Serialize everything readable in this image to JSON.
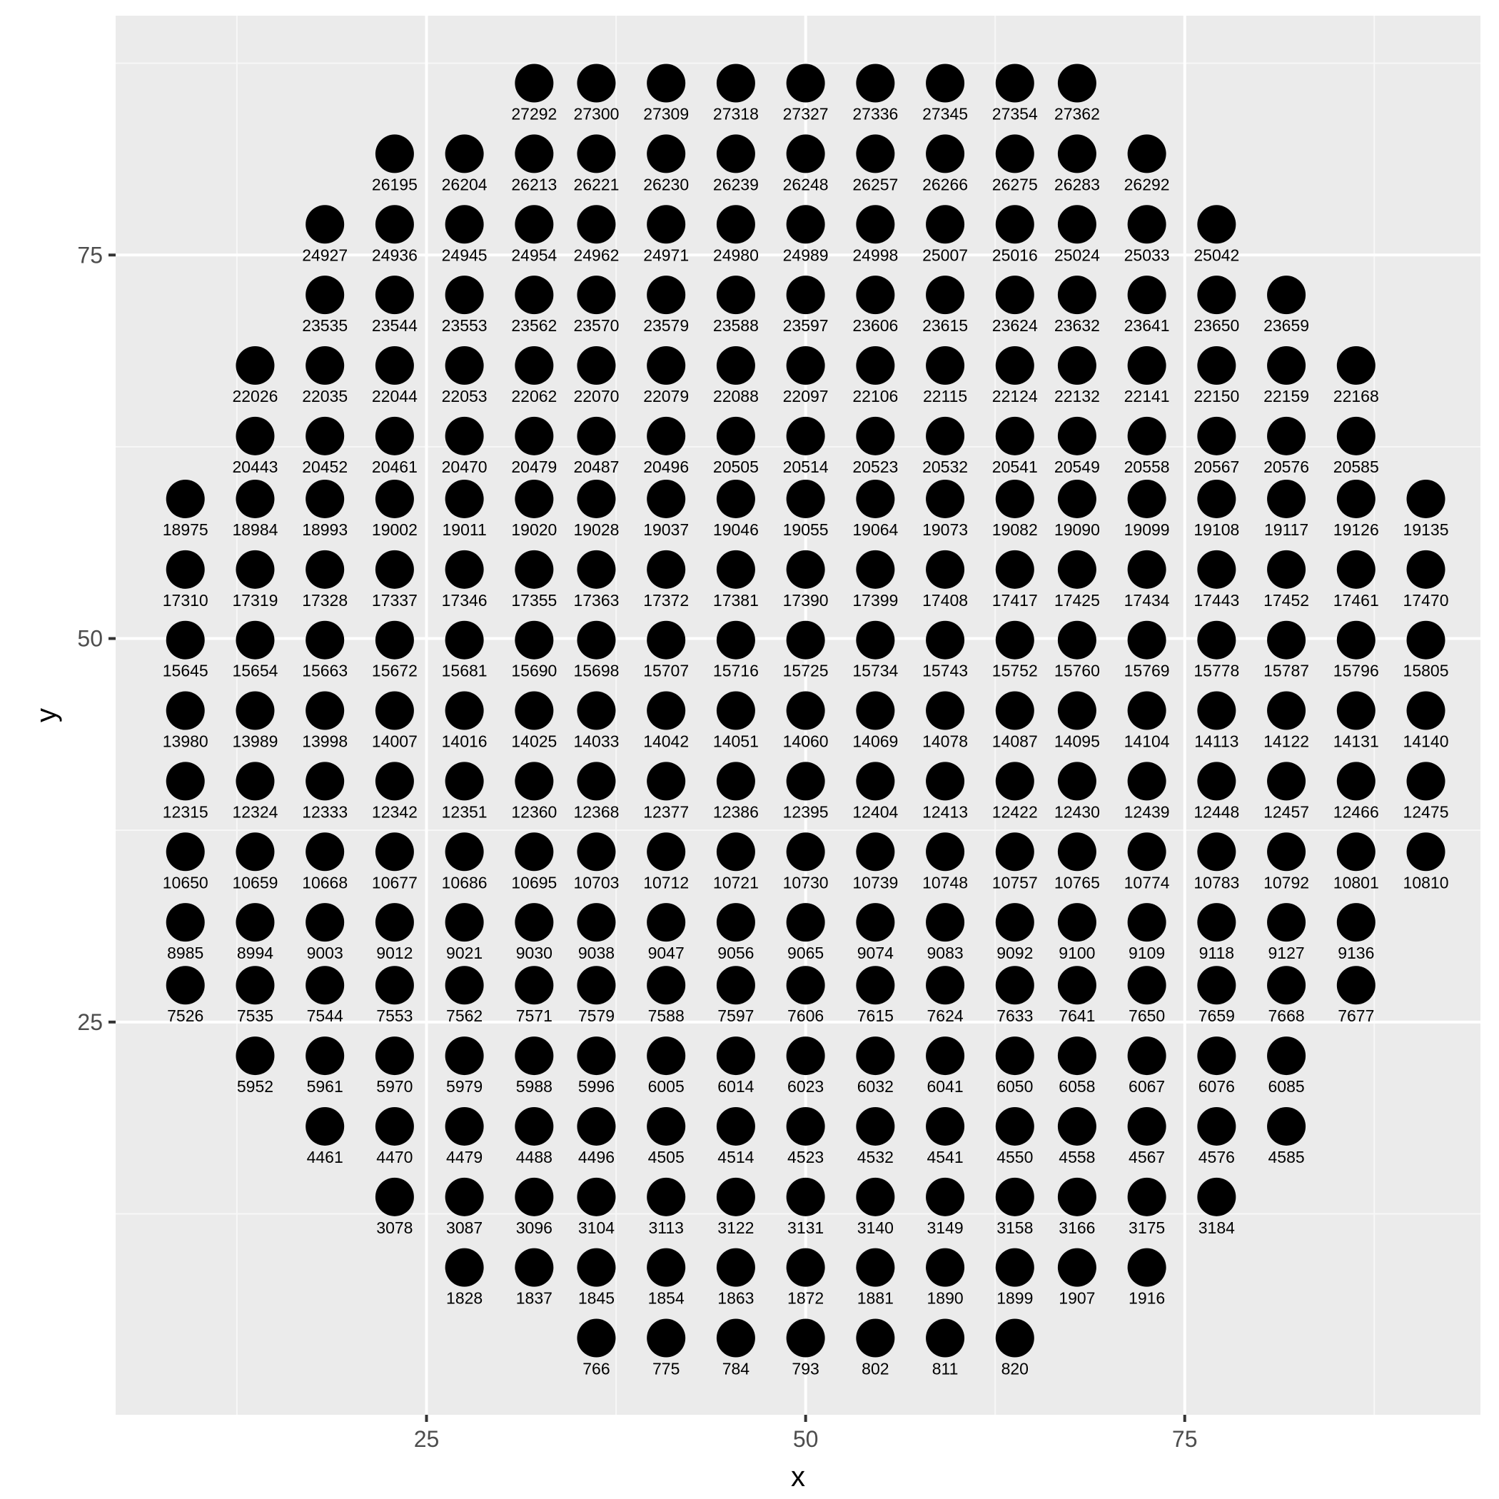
{
  "colors": {
    "panel_bg": "#EBEBEB",
    "grid_major": "#FFFFFF",
    "grid_minor": "#F7F7F7",
    "point": "#000000",
    "tick": "#333333"
  },
  "chart_data": {
    "type": "scatter",
    "xlabel": "x",
    "ylabel": "y",
    "xlim": [
      4.5,
      94.5
    ],
    "ylim": [
      -0.6,
      90.6
    ],
    "x_ticks": [
      25,
      50,
      75
    ],
    "y_ticks": [
      25,
      50,
      75
    ],
    "x_tick_labels": [
      "25",
      "50",
      "75"
    ],
    "y_tick_labels": [
      "25",
      "50",
      "75"
    ],
    "grid": true,
    "legend": "none",
    "rows": [
      {
        "y": 86.2,
        "x": [
          32.1,
          36.2,
          40.8,
          45.4,
          50.0,
          54.6,
          59.2,
          63.8,
          67.9
        ],
        "labels": [
          "27292",
          "27300",
          "27309",
          "27318",
          "27327",
          "27336",
          "27345",
          "27354",
          "27362"
        ]
      },
      {
        "y": 81.6,
        "x": [
          22.9,
          27.5,
          32.1,
          36.2,
          40.8,
          45.4,
          50.0,
          54.6,
          59.2,
          63.8,
          67.9,
          72.5
        ],
        "labels": [
          "26195",
          "26204",
          "26213",
          "26221",
          "26230",
          "26239",
          "26248",
          "26257",
          "26266",
          "26275",
          "26283",
          "26292"
        ]
      },
      {
        "y": 77.0,
        "x": [
          18.3,
          22.9,
          27.5,
          32.1,
          36.2,
          40.8,
          45.4,
          50.0,
          54.6,
          59.2,
          63.8,
          67.9,
          72.5,
          77.1
        ],
        "labels": [
          "24927",
          "24936",
          "24945",
          "24954",
          "24962",
          "24971",
          "24980",
          "24989",
          "24998",
          "25007",
          "25016",
          "25024",
          "25033",
          "25042"
        ]
      },
      {
        "y": 72.4,
        "x": [
          18.3,
          22.9,
          27.5,
          32.1,
          36.2,
          40.8,
          45.4,
          50.0,
          54.6,
          59.2,
          63.8,
          67.9,
          72.5,
          77.1,
          81.7
        ],
        "labels": [
          "23535",
          "23544",
          "23553",
          "23562",
          "23570",
          "23579",
          "23588",
          "23597",
          "23606",
          "23615",
          "23624",
          "23632",
          "23641",
          "23650",
          "23659"
        ]
      },
      {
        "y": 67.8,
        "x": [
          13.7,
          18.3,
          22.9,
          27.5,
          32.1,
          36.2,
          40.8,
          45.4,
          50.0,
          54.6,
          59.2,
          63.8,
          67.9,
          72.5,
          77.1,
          81.7,
          86.3
        ],
        "labels": [
          "22026",
          "22035",
          "22044",
          "22053",
          "22062",
          "22070",
          "22079",
          "22088",
          "22097",
          "22106",
          "22115",
          "22124",
          "22132",
          "22141",
          "22150",
          "22159",
          "22168"
        ]
      },
      {
        "y": 63.2,
        "x": [
          13.7,
          18.3,
          22.9,
          27.5,
          32.1,
          36.2,
          40.8,
          45.4,
          50.0,
          54.6,
          59.2,
          63.8,
          67.9,
          72.5,
          77.1,
          81.7,
          86.3
        ],
        "labels": [
          "20443",
          "20452",
          "20461",
          "20470",
          "20479",
          "20487",
          "20496",
          "20505",
          "20514",
          "20523",
          "20532",
          "20541",
          "20549",
          "20558",
          "20567",
          "20576",
          "20585"
        ]
      },
      {
        "y": 59.1,
        "x": [
          9.1,
          13.7,
          18.3,
          22.9,
          27.5,
          32.1,
          36.2,
          40.8,
          45.4,
          50.0,
          54.6,
          59.2,
          63.8,
          67.9,
          72.5,
          77.1,
          81.7,
          86.3,
          90.9
        ],
        "labels": [
          "18975",
          "18984",
          "18993",
          "19002",
          "19011",
          "19020",
          "19028",
          "19037",
          "19046",
          "19055",
          "19064",
          "19073",
          "19082",
          "19090",
          "19099",
          "19108",
          "19117",
          "19126",
          "19135"
        ]
      },
      {
        "y": 54.5,
        "x": [
          9.1,
          13.7,
          18.3,
          22.9,
          27.5,
          32.1,
          36.2,
          40.8,
          45.4,
          50.0,
          54.6,
          59.2,
          63.8,
          67.9,
          72.5,
          77.1,
          81.7,
          86.3,
          90.9
        ],
        "labels": [
          "17310",
          "17319",
          "17328",
          "17337",
          "17346",
          "17355",
          "17363",
          "17372",
          "17381",
          "17390",
          "17399",
          "17408",
          "17417",
          "17425",
          "17434",
          "17443",
          "17452",
          "17461",
          "17470"
        ]
      },
      {
        "y": 49.9,
        "x": [
          9.1,
          13.7,
          18.3,
          22.9,
          27.5,
          32.1,
          36.2,
          40.8,
          45.4,
          50.0,
          54.6,
          59.2,
          63.8,
          67.9,
          72.5,
          77.1,
          81.7,
          86.3,
          90.9
        ],
        "labels": [
          "15645",
          "15654",
          "15663",
          "15672",
          "15681",
          "15690",
          "15698",
          "15707",
          "15716",
          "15725",
          "15734",
          "15743",
          "15752",
          "15760",
          "15769",
          "15778",
          "15787",
          "15796",
          "15805"
        ]
      },
      {
        "y": 45.3,
        "x": [
          9.1,
          13.7,
          18.3,
          22.9,
          27.5,
          32.1,
          36.2,
          40.8,
          45.4,
          50.0,
          54.6,
          59.2,
          63.8,
          67.9,
          72.5,
          77.1,
          81.7,
          86.3,
          90.9
        ],
        "labels": [
          "13980",
          "13989",
          "13998",
          "14007",
          "14016",
          "14025",
          "14033",
          "14042",
          "14051",
          "14060",
          "14069",
          "14078",
          "14087",
          "14095",
          "14104",
          "14113",
          "14122",
          "14131",
          "14140"
        ]
      },
      {
        "y": 40.7,
        "x": [
          9.1,
          13.7,
          18.3,
          22.9,
          27.5,
          32.1,
          36.2,
          40.8,
          45.4,
          50.0,
          54.6,
          59.2,
          63.8,
          67.9,
          72.5,
          77.1,
          81.7,
          86.3,
          90.9
        ],
        "labels": [
          "12315",
          "12324",
          "12333",
          "12342",
          "12351",
          "12360",
          "12368",
          "12377",
          "12386",
          "12395",
          "12404",
          "12413",
          "12422",
          "12430",
          "12439",
          "12448",
          "12457",
          "12466",
          "12475"
        ]
      },
      {
        "y": 36.1,
        "x": [
          9.1,
          13.7,
          18.3,
          22.9,
          27.5,
          32.1,
          36.2,
          40.8,
          45.4,
          50.0,
          54.6,
          59.2,
          63.8,
          67.9,
          72.5,
          77.1,
          81.7,
          86.3,
          90.9
        ],
        "labels": [
          "10650",
          "10659",
          "10668",
          "10677",
          "10686",
          "10695",
          "10703",
          "10712",
          "10721",
          "10730",
          "10739",
          "10748",
          "10757",
          "10765",
          "10774",
          "10783",
          "10792",
          "10801",
          "10810"
        ]
      },
      {
        "y": 31.5,
        "x": [
          9.1,
          13.7,
          18.3,
          22.9,
          27.5,
          32.1,
          36.2,
          40.8,
          45.4,
          50.0,
          54.6,
          59.2,
          63.8,
          67.9,
          72.5,
          77.1,
          81.7,
          86.3
        ],
        "labels": [
          "8985",
          "8994",
          "9003",
          "9012",
          "9021",
          "9030",
          "9038",
          "9047",
          "9056",
          "9065",
          "9074",
          "9083",
          "9092",
          "9100",
          "9109",
          "9118",
          "9127",
          "9136"
        ]
      },
      {
        "y": 27.4,
        "x": [
          9.1,
          13.7,
          18.3,
          22.9,
          27.5,
          32.1,
          36.2,
          40.8,
          45.4,
          50.0,
          54.6,
          59.2,
          63.8,
          67.9,
          72.5,
          77.1,
          81.7,
          86.3
        ],
        "labels": [
          "7526",
          "7535",
          "7544",
          "7553",
          "7562",
          "7571",
          "7579",
          "7588",
          "7597",
          "7606",
          "7615",
          "7624",
          "7633",
          "7641",
          "7650",
          "7659",
          "7668",
          "7677"
        ]
      },
      {
        "y": 22.8,
        "x": [
          13.7,
          18.3,
          22.9,
          27.5,
          32.1,
          36.2,
          40.8,
          45.4,
          50.0,
          54.6,
          59.2,
          63.8,
          67.9,
          72.5,
          77.1,
          81.7
        ],
        "labels": [
          "5952",
          "5961",
          "5970",
          "5979",
          "5988",
          "5996",
          "6005",
          "6014",
          "6023",
          "6032",
          "6041",
          "6050",
          "6058",
          "6067",
          "6076",
          "6085"
        ]
      },
      {
        "y": 18.2,
        "x": [
          18.3,
          22.9,
          27.5,
          32.1,
          36.2,
          40.8,
          45.4,
          50.0,
          54.6,
          59.2,
          63.8,
          67.9,
          72.5,
          77.1,
          81.7
        ],
        "labels": [
          "4461",
          "4470",
          "4479",
          "4488",
          "4496",
          "4505",
          "4514",
          "4523",
          "4532",
          "4541",
          "4550",
          "4558",
          "4567",
          "4576",
          "4585"
        ]
      },
      {
        "y": 13.6,
        "x": [
          22.9,
          27.5,
          32.1,
          36.2,
          40.8,
          45.4,
          50.0,
          54.6,
          59.2,
          63.8,
          67.9,
          72.5,
          77.1
        ],
        "labels": [
          "3078",
          "3087",
          "3096",
          "3104",
          "3113",
          "3122",
          "3131",
          "3140",
          "3149",
          "3158",
          "3166",
          "3175",
          "3184"
        ]
      },
      {
        "y": 9.0,
        "x": [
          27.5,
          32.1,
          36.2,
          40.8,
          45.4,
          50.0,
          54.6,
          59.2,
          63.8,
          67.9,
          72.5
        ],
        "labels": [
          "1828",
          "1837",
          "1845",
          "1854",
          "1863",
          "1872",
          "1881",
          "1890",
          "1899",
          "1907",
          "1916"
        ]
      },
      {
        "y": 4.4,
        "x": [
          36.2,
          40.8,
          45.4,
          50.0,
          54.6,
          59.2,
          63.8
        ],
        "labels": [
          "766",
          "775",
          "784",
          "793",
          "802",
          "811",
          "820"
        ]
      }
    ]
  }
}
